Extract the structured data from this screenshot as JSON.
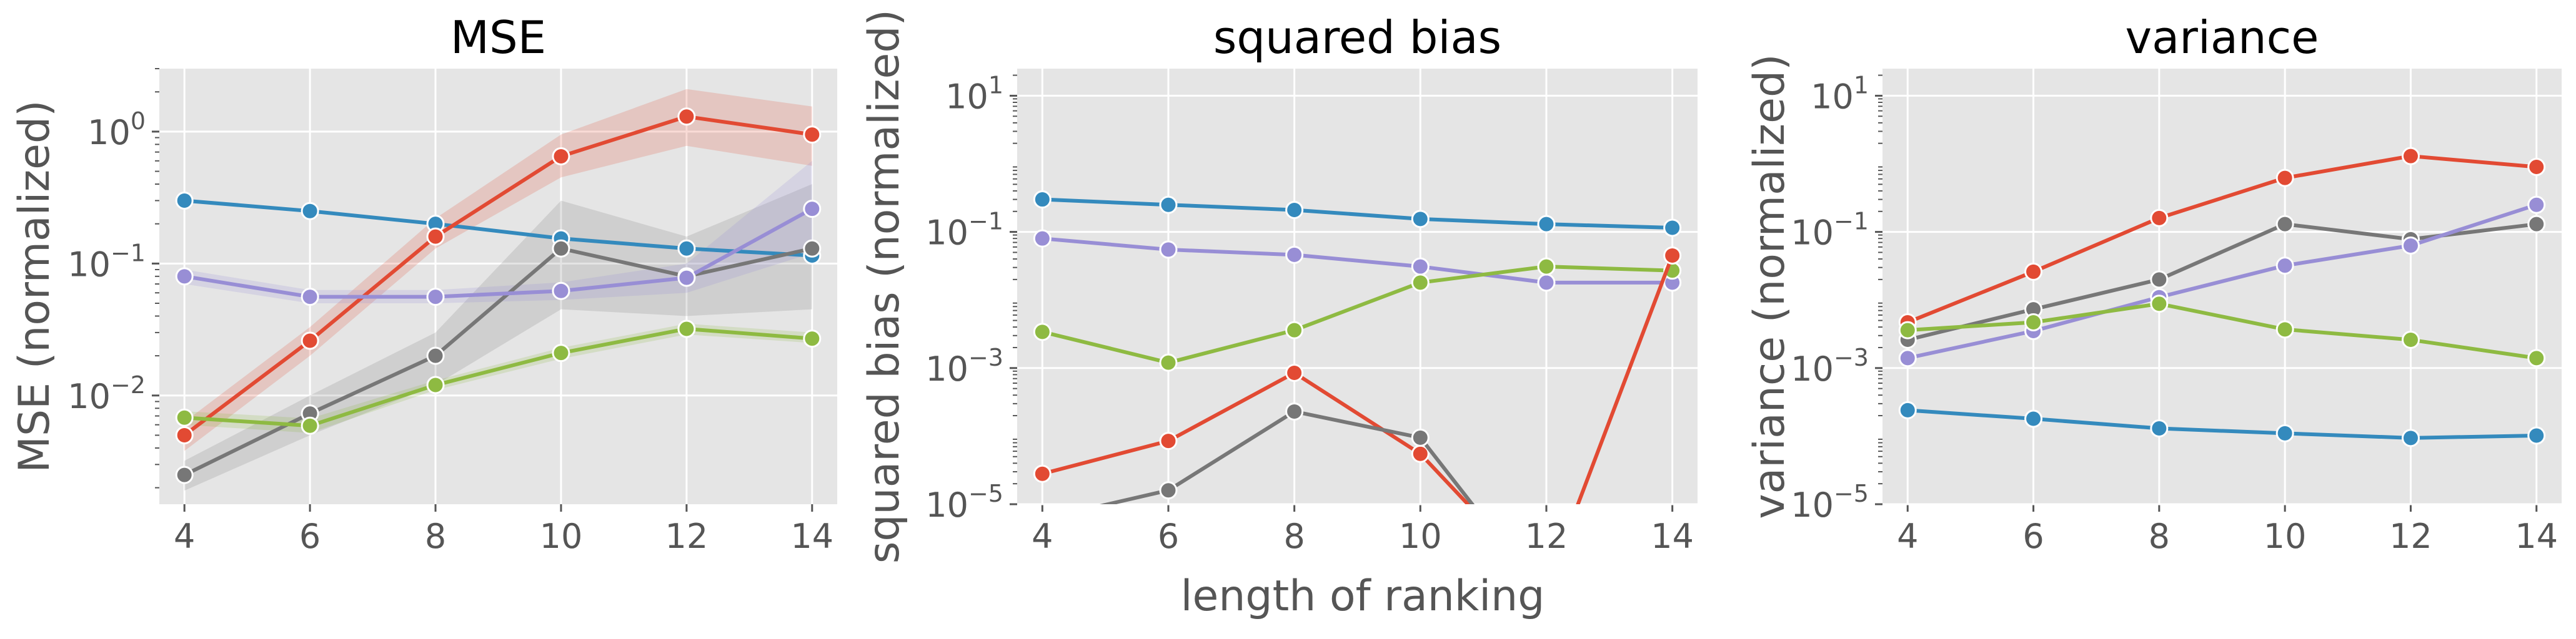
{
  "figure": {
    "shared_xlabel": "length of ranking"
  },
  "chart_data": [
    {
      "type": "line",
      "title": "MSE",
      "xlabel": "",
      "ylabel": "MSE (normalized)",
      "x": [
        4,
        6,
        8,
        10,
        12,
        14
      ],
      "xticks": [
        "4",
        "6",
        "8",
        "10",
        "12",
        "14"
      ],
      "ylog": true,
      "ylim": [
        0.0015,
        3.0
      ],
      "yticks": [
        {
          "base": "10",
          "exp": "0",
          "value": 1
        },
        {
          "base": "10",
          "exp": "−1",
          "value": 0.1
        },
        {
          "base": "10",
          "exp": "−2",
          "value": 0.01
        }
      ],
      "grid": true,
      "series": [
        {
          "color": "#348ABD",
          "values": [
            0.3,
            0.25,
            0.2,
            0.155,
            0.13,
            0.115
          ]
        },
        {
          "color": "#E24A33",
          "values": [
            0.005,
            0.026,
            0.16,
            0.65,
            1.3,
            0.95
          ],
          "band_low": [
            0.0038,
            0.02,
            0.13,
            0.45,
            0.78,
            0.55
          ],
          "band_high": [
            0.0063,
            0.033,
            0.22,
            0.95,
            2.1,
            1.55
          ]
        },
        {
          "color": "#777777",
          "values": [
            0.0025,
            0.0073,
            0.02,
            0.13,
            0.08,
            0.13
          ],
          "band_low": [
            0.0019,
            0.005,
            0.012,
            0.045,
            0.04,
            0.045
          ],
          "band_high": [
            0.0032,
            0.01,
            0.03,
            0.3,
            0.16,
            0.4
          ]
        },
        {
          "color": "#988ED5",
          "values": [
            0.08,
            0.056,
            0.056,
            0.062,
            0.078,
            0.26
          ],
          "band_low": [
            0.07,
            0.05,
            0.05,
            0.053,
            0.06,
            0.12
          ],
          "band_high": [
            0.09,
            0.063,
            0.063,
            0.072,
            0.1,
            0.6
          ]
        },
        {
          "color": "#8EBA42",
          "values": [
            0.0068,
            0.0059,
            0.012,
            0.021,
            0.032,
            0.027
          ],
          "band_low": [
            0.006,
            0.0052,
            0.011,
            0.019,
            0.029,
            0.025
          ],
          "band_high": [
            0.0076,
            0.0067,
            0.013,
            0.023,
            0.035,
            0.03
          ]
        }
      ]
    },
    {
      "type": "line",
      "title": "squared bias",
      "xlabel": "",
      "ylabel": "squared bias (normalized)",
      "x": [
        4,
        6,
        8,
        10,
        12,
        14
      ],
      "xticks": [
        "4",
        "6",
        "8",
        "10",
        "12",
        "14"
      ],
      "ylog": true,
      "ylim": [
        1e-05,
        25
      ],
      "yticks": [
        {
          "base": "10",
          "exp": "1",
          "value": 10
        },
        {
          "base": "10",
          "exp": "−1",
          "value": 0.1
        },
        {
          "base": "10",
          "exp": "−3",
          "value": 0.001
        },
        {
          "base": "10",
          "exp": "−5",
          "value": 1e-05
        }
      ],
      "grid": true,
      "series": [
        {
          "color": "#348ABD",
          "values": [
            0.3,
            0.25,
            0.21,
            0.155,
            0.13,
            0.115
          ]
        },
        {
          "color": "#988ED5",
          "values": [
            0.08,
            0.055,
            0.046,
            0.031,
            0.018,
            0.018
          ]
        },
        {
          "color": "#8EBA42",
          "values": [
            0.0034,
            0.0012,
            0.0036,
            0.018,
            0.031,
            0.027
          ]
        },
        {
          "color": "#E24A33",
          "values": [
            2.8e-05,
            8.5e-05,
            0.00085,
            5.5e-05,
            6e-07,
            0.045
          ]
        },
        {
          "color": "#777777",
          "values": [
            6e-06,
            1.6e-05,
            0.00023,
            9.5e-05,
            4e-07,
            null
          ]
        }
      ]
    },
    {
      "type": "line",
      "title": "variance",
      "xlabel": "",
      "ylabel": "variance (normalized)",
      "x": [
        4,
        6,
        8,
        10,
        12,
        14
      ],
      "xticks": [
        "4",
        "6",
        "8",
        "10",
        "12",
        "14"
      ],
      "ylog": true,
      "ylim": [
        1e-05,
        25
      ],
      "yticks": [
        {
          "base": "10",
          "exp": "1",
          "value": 10
        },
        {
          "base": "10",
          "exp": "−1",
          "value": 0.1
        },
        {
          "base": "10",
          "exp": "−3",
          "value": 0.001
        },
        {
          "base": "10",
          "exp": "−5",
          "value": 1e-05
        }
      ],
      "grid": true,
      "series": [
        {
          "color": "#E24A33",
          "values": [
            0.0047,
            0.026,
            0.16,
            0.62,
            1.3,
            0.9
          ]
        },
        {
          "color": "#777777",
          "values": [
            0.0026,
            0.0073,
            0.02,
            0.13,
            0.078,
            0.13
          ]
        },
        {
          "color": "#988ED5",
          "values": [
            0.0014,
            0.0035,
            0.011,
            0.032,
            0.063,
            0.25
          ]
        },
        {
          "color": "#8EBA42",
          "values": [
            0.0036,
            0.0047,
            0.0088,
            0.0037,
            0.0026,
            0.0014
          ]
        },
        {
          "color": "#348ABD",
          "values": [
            0.00024,
            0.00018,
            0.00013,
            0.00011,
            9.4e-05,
            0.000102
          ]
        }
      ]
    }
  ]
}
